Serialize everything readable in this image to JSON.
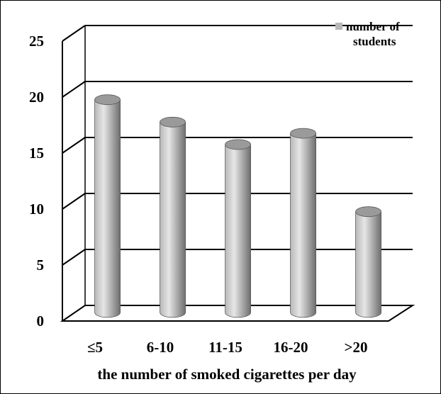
{
  "chart_data": {
    "type": "bar",
    "categories": [
      "≤5",
      "6-10",
      "11-15",
      "16-20",
      ">20"
    ],
    "series": [
      {
        "name": "number of students",
        "values": [
          19,
          17,
          15,
          16,
          9
        ]
      }
    ],
    "xlabel": "the number of smoked cigarettes per day",
    "ylabel": "",
    "ylim": [
      0,
      25
    ],
    "yticks": [
      0,
      5,
      10,
      15,
      20,
      25
    ],
    "grid": true,
    "legend": {
      "position": "top-right",
      "lines": [
        "number of",
        "students"
      ]
    },
    "style": "3d-cylinder",
    "colors": {
      "bar_light": "#e6e6e6",
      "bar_mid": "#b8b8b8",
      "bar_dark": "#6e6e6e",
      "grid": "#000000"
    }
  }
}
